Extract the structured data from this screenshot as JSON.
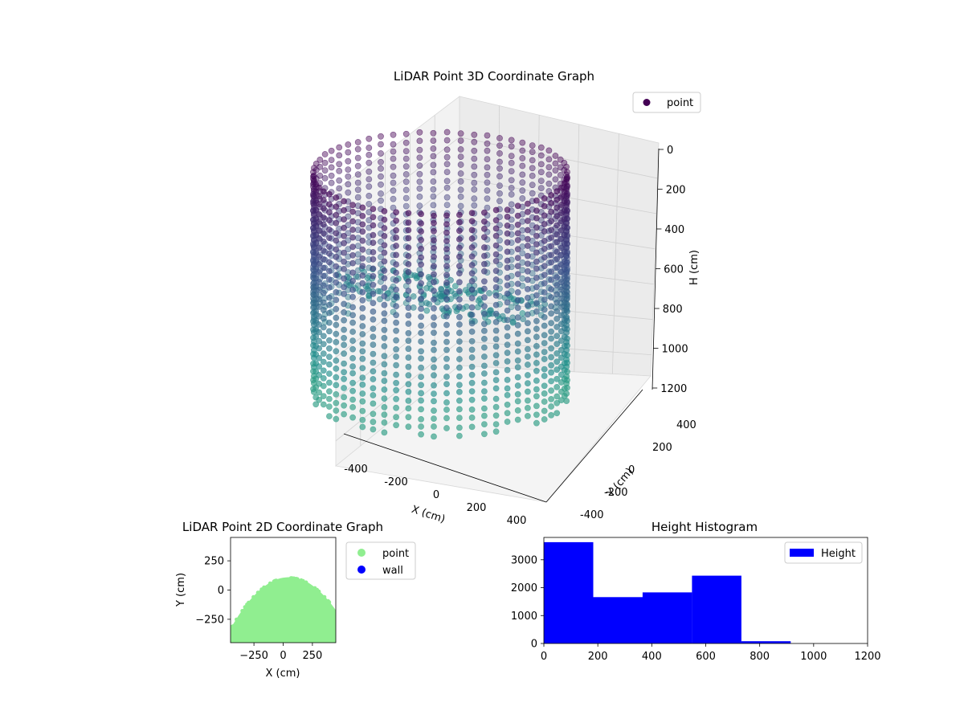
{
  "chart_data": [
    {
      "type": "scatter3d",
      "title": "LiDAR Point 3D Coordinate Graph",
      "xlabel": "X (cm)",
      "ylabel": "Y (cm)",
      "zlabel": "H (cm)",
      "xlim": [
        -450,
        450
      ],
      "ylim": [
        -450,
        450
      ],
      "zlim": [
        1200,
        0
      ],
      "xticks": [
        "-400",
        "-200",
        "0",
        "200",
        "400"
      ],
      "yticks": [
        "-400",
        "-200",
        "0",
        "200",
        "400"
      ],
      "zticks": [
        "0",
        "200",
        "400",
        "600",
        "800",
        "1000",
        "1200"
      ],
      "legend": {
        "location": "top-right",
        "entries": [
          {
            "label": "point",
            "color": "#440154"
          }
        ]
      },
      "colormap": "viridis",
      "series": [
        {
          "name": "point",
          "shape": "cylinder-wall",
          "radius_cm": 420,
          "height_range_cm": [
            0,
            900
          ]
        },
        {
          "name": "point",
          "shape": "floor-surface",
          "height_range_cm": [
            600,
            720
          ]
        }
      ]
    },
    {
      "type": "scatter",
      "title": "LiDAR Point 2D Coordinate Graph",
      "xlabel": "X (cm)",
      "ylabel": "Y (cm)",
      "xlim": [
        -450,
        450
      ],
      "ylim": [
        -450,
        450
      ],
      "xticks": [
        "−250",
        "0",
        "250"
      ],
      "yticks": [
        "250",
        "0",
        "−250"
      ],
      "legend": {
        "location": "outside-right",
        "entries": [
          {
            "label": "point",
            "color": "#90ee90"
          },
          {
            "label": "wall",
            "color": "#0000ff"
          }
        ]
      },
      "series": [
        {
          "name": "point",
          "color": "#90ee90",
          "shape": "dome",
          "top_y_cm": 110,
          "bottom_y_cm": -450
        }
      ]
    },
    {
      "type": "histogram",
      "title": "Height Histogram",
      "xlabel": "",
      "ylabel": "",
      "xlim": [
        0,
        1200
      ],
      "ylim": [
        0,
        3800
      ],
      "xticks": [
        "0",
        "200",
        "400",
        "600",
        "800",
        "1000",
        "1200"
      ],
      "yticks": [
        "0",
        "1000",
        "2000",
        "3000"
      ],
      "bar_color": "#0000ff",
      "legend": {
        "location": "top-right",
        "entries": [
          {
            "label": "Height",
            "color": "#0000ff"
          }
        ]
      },
      "bins": [
        0,
        183,
        366,
        549,
        732,
        915
      ],
      "counts": [
        3630,
        1660,
        1830,
        2430,
        80
      ]
    }
  ]
}
